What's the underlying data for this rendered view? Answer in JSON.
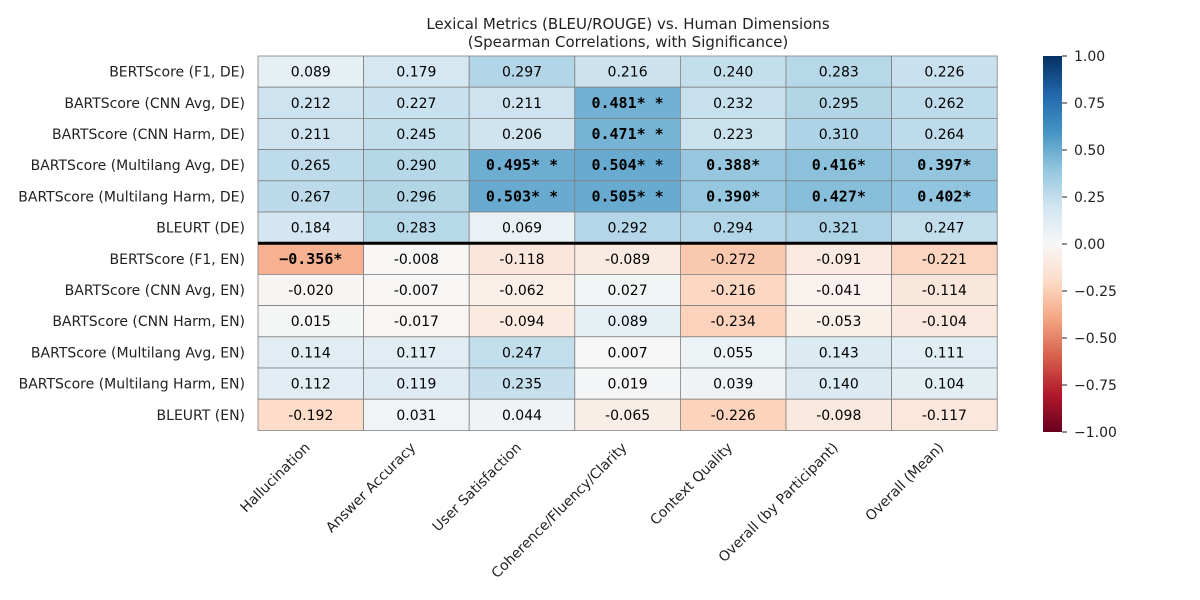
{
  "chart_data": {
    "type": "heatmap",
    "title": "Lexical Metrics (BLEU/ROUGE) vs. Human Dimensions",
    "subtitle": "(Spearman Correlations, with Significance)",
    "columns": [
      "Hallucination",
      "Answer Accuracy",
      "User Satisfaction",
      "Coherence/Fluency/Clarity",
      "Context Quality",
      "Overall (by Participant)",
      "Overall (Mean)"
    ],
    "rows": [
      "BERTScore (F1, DE)",
      "BARTScore (CNN Avg, DE)",
      "BARTScore (CNN Harm, DE)",
      "BARTScore (Multilang Avg, DE)",
      "BARTScore (Multilang Harm, DE)",
      "BLEURT (DE)",
      "BERTScore (F1, EN)",
      "BARTScore (CNN Avg, EN)",
      "BARTScore (CNN Harm, EN)",
      "BARTScore (Multilang Avg, EN)",
      "BARTScore (Multilang Harm, EN)",
      "BLEURT (EN)"
    ],
    "values": [
      [
        0.089,
        0.179,
        0.297,
        0.216,
        0.24,
        0.283,
        0.226
      ],
      [
        0.212,
        0.227,
        0.211,
        0.481,
        0.232,
        0.295,
        0.262
      ],
      [
        0.211,
        0.245,
        0.206,
        0.471,
        0.223,
        0.31,
        0.264
      ],
      [
        0.265,
        0.29,
        0.495,
        0.504,
        0.388,
        0.416,
        0.397
      ],
      [
        0.267,
        0.296,
        0.503,
        0.505,
        0.39,
        0.427,
        0.402
      ],
      [
        0.184,
        0.283,
        0.069,
        0.292,
        0.294,
        0.321,
        0.247
      ],
      [
        -0.356,
        -0.008,
        -0.118,
        -0.089,
        -0.272,
        -0.091,
        -0.221
      ],
      [
        -0.02,
        -0.007,
        -0.062,
        0.027,
        -0.216,
        -0.041,
        -0.114
      ],
      [
        0.015,
        -0.017,
        -0.094,
        0.089,
        -0.234,
        -0.053,
        -0.104
      ],
      [
        0.114,
        0.117,
        0.247,
        0.007,
        0.055,
        0.143,
        0.111
      ],
      [
        0.112,
        0.119,
        0.235,
        0.019,
        0.039,
        0.14,
        0.104
      ],
      [
        -0.192,
        0.031,
        0.044,
        -0.065,
        -0.226,
        -0.098,
        -0.117
      ]
    ],
    "cell_labels": [
      [
        "0.089",
        "0.179",
        "0.297",
        "0.216",
        "0.240",
        "0.283",
        "0.226"
      ],
      [
        "0.212",
        "0.227",
        "0.211",
        "0.481* *",
        "0.232",
        "0.295",
        "0.262"
      ],
      [
        "0.211",
        "0.245",
        "0.206",
        "0.471* *",
        "0.223",
        "0.310",
        "0.264"
      ],
      [
        "0.265",
        "0.290",
        "0.495* *",
        "0.504* *",
        "0.388*",
        "0.416*",
        "0.397*"
      ],
      [
        "0.267",
        "0.296",
        "0.503* *",
        "0.505* *",
        "0.390*",
        "0.427*",
        "0.402*"
      ],
      [
        "0.184",
        "0.283",
        "0.069",
        "0.292",
        "0.294",
        "0.321",
        "0.247"
      ],
      [
        "−0.356*",
        "-0.008",
        "-0.118",
        "-0.089",
        "-0.272",
        "-0.091",
        "-0.221"
      ],
      [
        "-0.020",
        "-0.007",
        "-0.062",
        "0.027",
        "-0.216",
        "-0.041",
        "-0.114"
      ],
      [
        "0.015",
        "-0.017",
        "-0.094",
        "0.089",
        "-0.234",
        "-0.053",
        "-0.104"
      ],
      [
        "0.114",
        "0.117",
        "0.247",
        "0.007",
        "0.055",
        "0.143",
        "0.111"
      ],
      [
        "0.112",
        "0.119",
        "0.235",
        "0.019",
        "0.039",
        "0.140",
        "0.104"
      ],
      [
        "-0.192",
        "0.031",
        "0.044",
        "-0.065",
        "-0.226",
        "-0.098",
        "-0.117"
      ]
    ],
    "significant": [
      [
        false,
        false,
        false,
        false,
        false,
        false,
        false
      ],
      [
        false,
        false,
        false,
        true,
        false,
        false,
        false
      ],
      [
        false,
        false,
        false,
        true,
        false,
        false,
        false
      ],
      [
        false,
        false,
        true,
        true,
        true,
        true,
        true
      ],
      [
        false,
        false,
        true,
        true,
        true,
        true,
        true
      ],
      [
        false,
        false,
        false,
        false,
        false,
        false,
        false
      ],
      [
        true,
        false,
        false,
        false,
        false,
        false,
        false
      ],
      [
        false,
        false,
        false,
        false,
        false,
        false,
        false
      ],
      [
        false,
        false,
        false,
        false,
        false,
        false,
        false
      ],
      [
        false,
        false,
        false,
        false,
        false,
        false,
        false
      ],
      [
        false,
        false,
        false,
        false,
        false,
        false,
        false
      ],
      [
        false,
        false,
        false,
        false,
        false,
        false,
        false
      ]
    ],
    "group_separator_after_row": 5,
    "colorscale": "RdBu",
    "vmin": -1.0,
    "vmax": 1.0,
    "colorbar_ticks": [
      "1.00",
      "0.75",
      "0.50",
      "0.25",
      "0.00",
      "−0.25",
      "−0.50",
      "−0.75",
      "−1.00"
    ],
    "colorbar_tick_values": [
      1.0,
      0.75,
      0.5,
      0.25,
      0.0,
      -0.25,
      -0.5,
      -0.75,
      -1.0
    ],
    "legend_placement": "right"
  }
}
